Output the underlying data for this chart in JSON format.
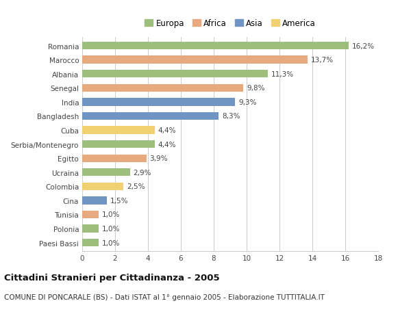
{
  "countries": [
    "Romania",
    "Marocco",
    "Albania",
    "Senegal",
    "India",
    "Bangladesh",
    "Cuba",
    "Serbia/Montenegro",
    "Egitto",
    "Ucraina",
    "Colombia",
    "Cina",
    "Tunisia",
    "Polonia",
    "Paesi Bassi"
  ],
  "values": [
    16.2,
    13.7,
    11.3,
    9.8,
    9.3,
    8.3,
    4.4,
    4.4,
    3.9,
    2.9,
    2.5,
    1.5,
    1.0,
    1.0,
    1.0
  ],
  "labels": [
    "16,2%",
    "13,7%",
    "11,3%",
    "9,8%",
    "9,3%",
    "8,3%",
    "4,4%",
    "4,4%",
    "3,9%",
    "2,9%",
    "2,5%",
    "1,5%",
    "1,0%",
    "1,0%",
    "1,0%"
  ],
  "continents": [
    "Europa",
    "Africa",
    "Europa",
    "Africa",
    "Asia",
    "Asia",
    "America",
    "Europa",
    "Africa",
    "Europa",
    "America",
    "Asia",
    "Africa",
    "Europa",
    "Europa"
  ],
  "continent_colors": {
    "Europa": "#9ebe7e",
    "Africa": "#e8a97e",
    "Asia": "#7094c4",
    "America": "#f0d070"
  },
  "legend_order": [
    "Europa",
    "Africa",
    "Asia",
    "America"
  ],
  "xlim": [
    0,
    18
  ],
  "xticks": [
    0,
    2,
    4,
    6,
    8,
    10,
    12,
    14,
    16,
    18
  ],
  "title": "Cittadini Stranieri per Cittadinanza - 2005",
  "subtitle": "COMUNE DI PONCARALE (BS) - Dati ISTAT al 1° gennaio 2005 - Elaborazione TUTTITALIA.IT",
  "background_color": "#ffffff",
  "bar_height": 0.55,
  "grid_color": "#cccccc",
  "label_fontsize": 7.5,
  "value_fontsize": 7.5,
  "title_fontsize": 9.5,
  "subtitle_fontsize": 7.5,
  "legend_fontsize": 8.5
}
